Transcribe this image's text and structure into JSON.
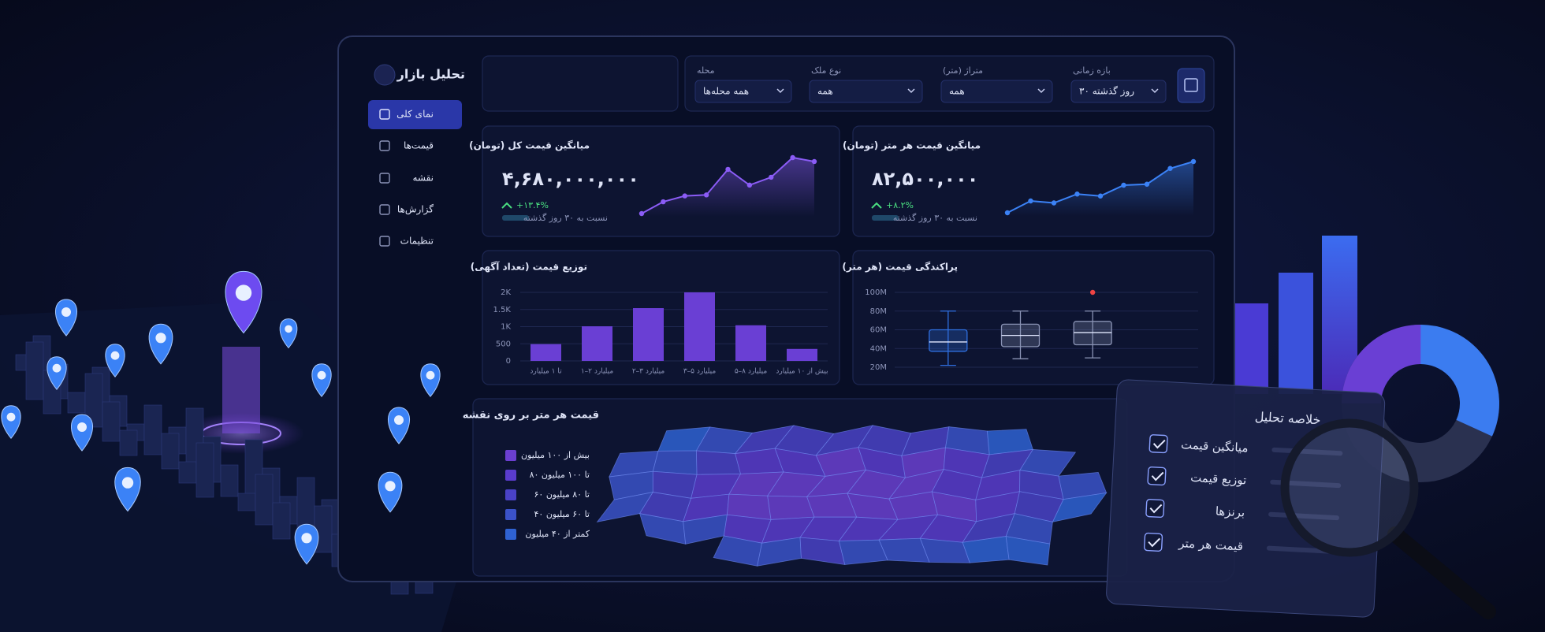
{
  "sidebar": {
    "title": "تحلیل بازار",
    "nav": [
      "نمای کلی",
      "قیمت‌ها",
      "نقشه",
      "گزارش‌ها",
      "تنظیمات"
    ]
  },
  "filters": [
    {
      "label": "بازه زمانی",
      "value": "۳۰ روز گذشته"
    },
    {
      "label": "متراژ (متر)",
      "value": "همه"
    },
    {
      "label": "نوع ملک",
      "value": "همه"
    },
    {
      "label": "محله",
      "value": "همه محله‌ها"
    }
  ],
  "kpis": [
    {
      "title": "میانگین قیمت کل (تومان)",
      "value": "۴,۶۸۰,۰۰۰,۰۰۰",
      "change": "+۱۳.۴%",
      "note": "نسبت به ۳۰ روز گذشته"
    },
    {
      "title": "میانگین قیمت هر متر (تومان)",
      "value": "۸۲,۵۰۰,۰۰۰",
      "change": "+۸.۲%",
      "note": "نسبت به ۳۰ روز گذشته"
    }
  ],
  "chart_data": [
    {
      "type": "line",
      "values": [
        20,
        32,
        38,
        39,
        65,
        49,
        57,
        77,
        73
      ],
      "color": "#8b5cf6"
    },
    {
      "type": "line",
      "values": [
        10,
        22,
        20,
        29,
        27,
        38,
        39,
        55,
        62
      ],
      "color": "#3b82f6"
    },
    {
      "type": "bar",
      "title": "توزیع قیمت (تعداد آگهی)",
      "categories": [
        "تا ۱ میلیارد",
        "۱–۲ میلیارد",
        "۲–۳ میلیارد",
        "۳–۵ میلیارد",
        "۵–۸ میلیارد",
        "بیش از ۱۰ میلیارد"
      ],
      "values": [
        490,
        1010,
        1540,
        2000,
        1040,
        350
      ],
      "color": "#6a3fd4",
      "ylim": [
        0,
        2000
      ],
      "yticks": [
        0,
        500,
        {
          "value": 1000,
          "label": "1K"
        },
        {
          "value": 1500,
          "label": "1.5K"
        },
        {
          "value": 2000,
          "label": "2K"
        }
      ],
      "grid": true
    },
    {
      "type": "box",
      "title": "پراکندگی قیمت (هر متر)",
      "ylim": [
        20,
        100
      ],
      "yticks": [
        {
          "value": 20,
          "label": "20M"
        },
        {
          "value": 40,
          "label": "40M"
        },
        {
          "value": 60,
          "label": "60M"
        },
        {
          "value": 80,
          "label": "80M"
        },
        {
          "value": 100,
          "label": "100M"
        }
      ],
      "boxes": [
        {
          "whislo": 22,
          "q1": 37,
          "med": 47,
          "q3": 60,
          "whishi": 80,
          "fliers": [],
          "color": "#2f6fe0"
        },
        {
          "whislo": 29,
          "q1": 42,
          "med": 54,
          "q3": 66,
          "whishi": 80,
          "fliers": [],
          "color": "#8a93b5"
        },
        {
          "whislo": 30,
          "q1": 44,
          "med": 57,
          "q3": 69,
          "whishi": 80,
          "fliers": [
            100
          ],
          "color": "#8a93b5"
        }
      ],
      "flier_color": "#ef4444",
      "grid": true
    }
  ],
  "map": {
    "title": "قیمت هر متر بر روی نقشه",
    "legend": [
      {
        "label": "بیش از ۱۰۰ میلیون",
        "color": "#6b3fd0"
      },
      {
        "label": "۸۰ تا ۱۰۰ میلیون",
        "color": "#5a3ccc"
      },
      {
        "label": "۶۰ تا ۸۰ میلیون",
        "color": "#4a42c6"
      },
      {
        "label": "۴۰ تا ۶۰ میلیون",
        "color": "#3b52c8"
      },
      {
        "label": "کمتر از ۴۰ میلیون",
        "color": "#2f62d2"
      }
    ]
  },
  "summary": {
    "title": "خلاصه تحلیل",
    "items": [
      "میانگین قیمت",
      "توزیع قیمت",
      "برنزها",
      "قیمت هر متر"
    ]
  }
}
